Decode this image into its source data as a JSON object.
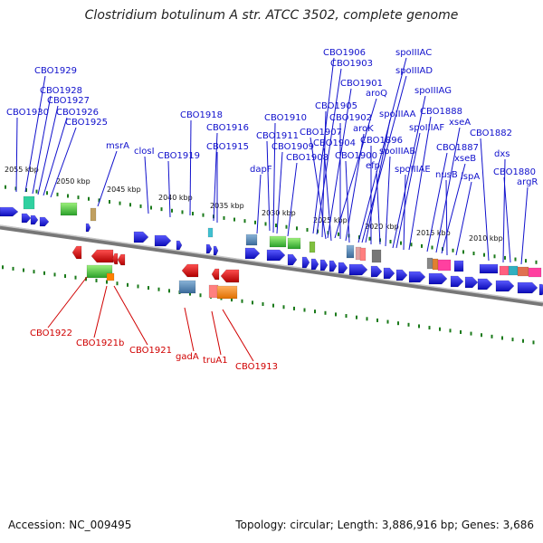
{
  "title": "Clostridium botulinum A str. ATCC 3502, complete genome",
  "accession": "Accession: NC_009495",
  "topology": "Topology: circular; Length: 3,886,916 bp; Genes: 3,686",
  "colors": {
    "forward_gene": "#1e1ee0",
    "reverse_gene": "#e01010",
    "forward_label": "#1010cc",
    "reverse_label": "#d00000",
    "backbone": "#888888",
    "tick": "#1a7a1a"
  },
  "scale_labels": [
    "2055 kbp",
    "2050 kbp",
    "2045 kbp",
    "2040 kbp",
    "2035 kbp",
    "2030 kbp",
    "2025 kbp",
    "2020 kbp",
    "2015 kbp",
    "2010 kbp"
  ],
  "forward_labels": [
    "CBO1929",
    "CBO1928",
    "CBO1927",
    "CBO1930",
    "CBO1926",
    "CBO1925",
    "msrA",
    "closI",
    "CBO1919",
    "CBO1918",
    "CBO1916",
    "CBO1915",
    "dapF",
    "CBO1910",
    "CBO1911",
    "CBO1909",
    "CBO1908",
    "CBO1906",
    "CBO1903",
    "CBO1905",
    "CBO1901",
    "aroQ",
    "CBO1902",
    "CBO1907",
    "CBO1904",
    "aroK",
    "CBO1900",
    "spoIIIAC",
    "spoIIIAD",
    "spoIIIAA",
    "CBO1896",
    "efp",
    "spoIIIAB",
    "spoIIIAG",
    "spoIIIAF",
    "spoIIIAE",
    "CBO1888",
    "CBO1887",
    "xseA",
    "xseB",
    "nusB",
    "ispA",
    "CBO1882",
    "dxs",
    "CBO1880",
    "argR"
  ],
  "reverse_labels": [
    "CBO1922",
    "CBO1921b",
    "CBO1921",
    "gadA",
    "truA1",
    "CBO1913"
  ]
}
